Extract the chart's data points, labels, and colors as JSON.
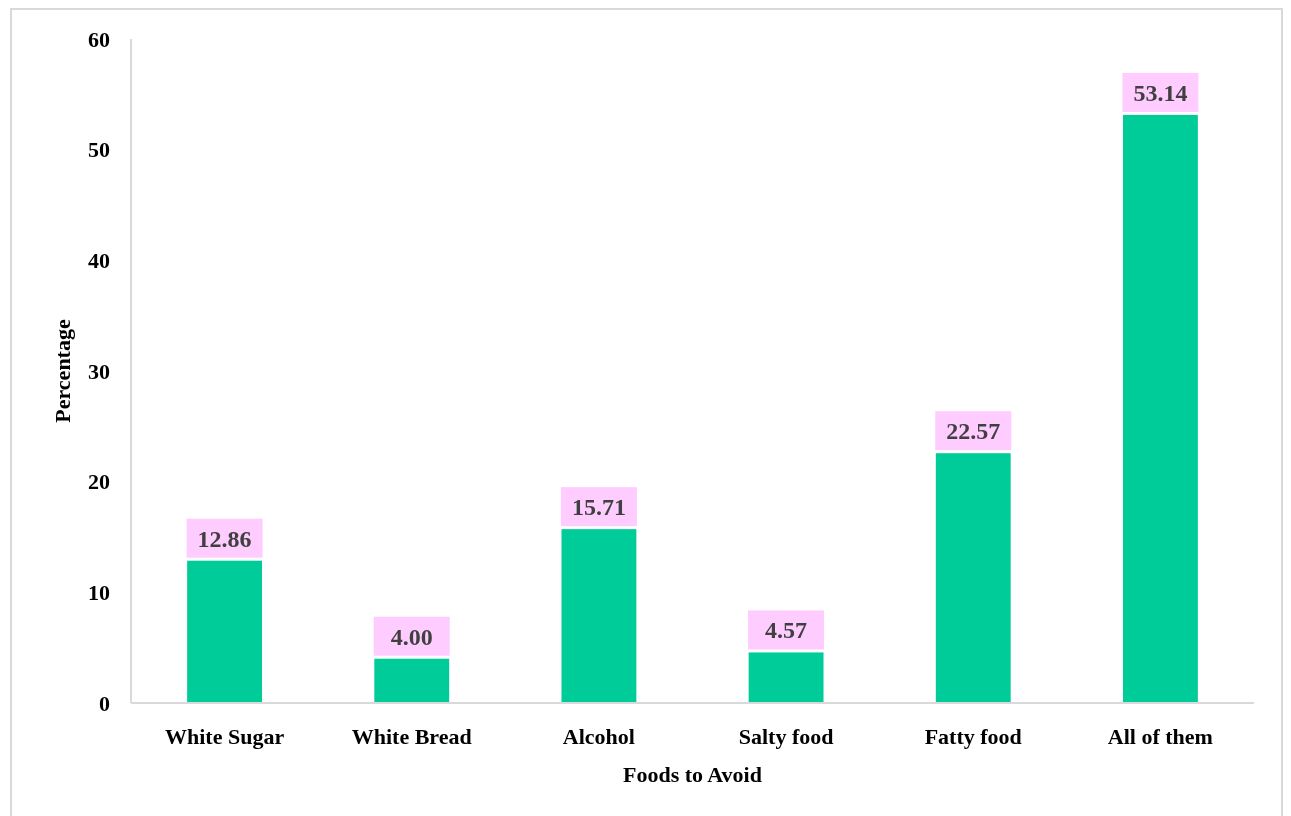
{
  "chart_data": {
    "type": "bar",
    "xlabel": "Foods to Avoid",
    "ylabel": "Percentage",
    "categories": [
      "White Sugar",
      "White Bread",
      "Alcohol",
      "Salty food",
      "Fatty food",
      "All of them"
    ],
    "values": [
      12.86,
      4.0,
      15.71,
      4.57,
      22.57,
      53.14
    ],
    "value_labels": [
      "12.86",
      "4.00",
      "15.71",
      "4.57",
      "22.57",
      "53.14"
    ],
    "color": "#00cc99",
    "ylim": [
      0,
      60
    ],
    "yticks": [
      0,
      10,
      20,
      30,
      40,
      50,
      60
    ]
  }
}
